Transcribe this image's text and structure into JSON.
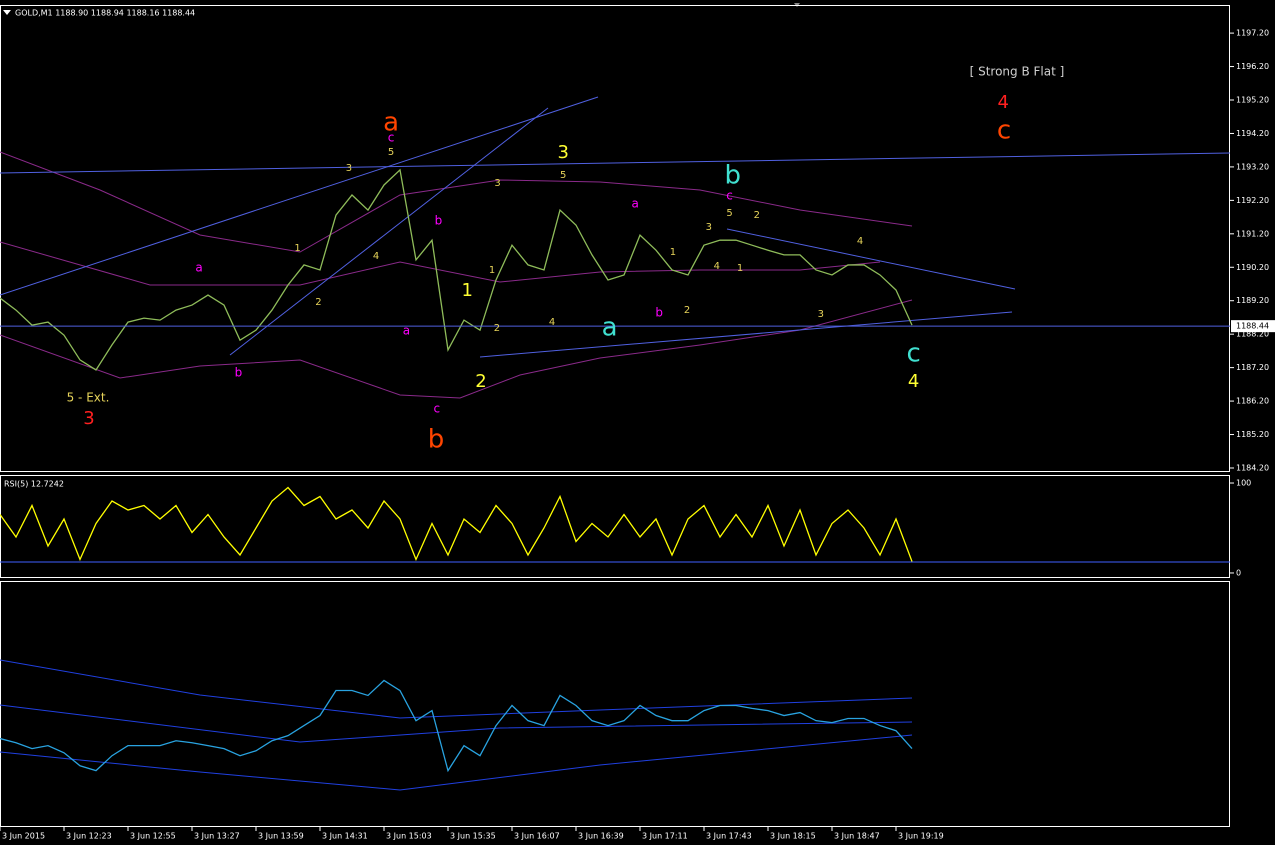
{
  "chart_data": [
    {
      "type": "line",
      "title": "GOLD,M1  1188.90 1188.94 1188.16 1188.44",
      "color": "#8fbc5a",
      "values": [
        1189.28,
        1188.92,
        1188.47,
        1188.56,
        1188.17,
        1187.43,
        1187.13,
        1187.88,
        1188.56,
        1188.68,
        1188.62,
        1188.92,
        1189.07,
        1189.37,
        1189.07,
        1188.02,
        1188.32,
        1188.92,
        1189.67,
        1190.27,
        1190.12,
        1191.76,
        1192.36,
        1191.91,
        1192.66,
        1193.11,
        1190.42,
        1191.01,
        1187.73,
        1188.62,
        1188.32,
        1189.82,
        1190.86,
        1190.27,
        1190.12,
        1191.91,
        1191.46,
        1190.57,
        1189.82,
        1189.97,
        1191.16,
        1190.71,
        1190.12,
        1189.97,
        1190.86,
        1191.01,
        1191.01,
        1190.86,
        1190.71,
        1190.57,
        1190.57,
        1190.12,
        1189.97,
        1190.27,
        1190.27,
        1189.97,
        1189.52,
        1188.47
      ],
      "last_price": 1188.44,
      "ylim": [
        1184.08,
        1198.04
      ],
      "yticks": [
        {
          "value": 1184.2,
          "label": "1184.20"
        },
        {
          "value": 1185.2,
          "label": "1185.20"
        },
        {
          "value": 1186.2,
          "label": "1186.20"
        },
        {
          "value": 1187.2,
          "label": "1187.20"
        },
        {
          "value": 1188.2,
          "label": "1188.20"
        },
        {
          "value": 1189.2,
          "label": "1189.20"
        },
        {
          "value": 1190.2,
          "label": "1190.20"
        },
        {
          "value": 1191.2,
          "label": "1191.20"
        },
        {
          "value": 1192.2,
          "label": "1192.20"
        },
        {
          "value": 1193.2,
          "label": "1193.20"
        },
        {
          "value": 1194.2,
          "label": "1194.20"
        },
        {
          "value": 1195.2,
          "label": "1195.20"
        },
        {
          "value": 1196.2,
          "label": "1196.20"
        },
        {
          "value": 1197.2,
          "label": "1197.20"
        }
      ],
      "annotations": [
        {
          "text": "a",
          "x": 24.44,
          "y": 1194.51,
          "color": "#ff4500",
          "size": "large"
        },
        {
          "text": "c",
          "x": 24.44,
          "y": 1194.06,
          "color": "#ff00ff",
          "size": "small"
        },
        {
          "text": "5",
          "x": 24.44,
          "y": 1193.64,
          "color": "#e6d35a",
          "size": "tiny"
        },
        {
          "text": "3",
          "x": 21.81,
          "y": 1193.17,
          "color": "#e6d35a",
          "size": "tiny"
        },
        {
          "text": "1",
          "x": 18.6,
          "y": 1190.77,
          "color": "#e6d35a",
          "size": "tiny"
        },
        {
          "text": "2",
          "x": 19.9,
          "y": 1189.16,
          "color": "#e6d35a",
          "size": "tiny"
        },
        {
          "text": "4",
          "x": 23.5,
          "y": 1190.54,
          "color": "#e6d35a",
          "size": "tiny"
        },
        {
          "text": "a",
          "x": 12.44,
          "y": 1190.18,
          "color": "#ff00ff",
          "size": "small"
        },
        {
          "text": "b",
          "x": 14.9,
          "y": 1187.04,
          "color": "#ff00ff",
          "size": "small"
        },
        {
          "text": "5 - Ext.",
          "x": 5.5,
          "y": 1186.29,
          "color": "#e6d35a",
          "size": "small"
        },
        {
          "text": "3",
          "x": 5.56,
          "y": 1185.66,
          "color": "#ff2020",
          "size": "medium"
        },
        {
          "text": "b",
          "x": 27.4,
          "y": 1191.58,
          "color": "#ff00ff",
          "size": "small"
        },
        {
          "text": "a",
          "x": 25.4,
          "y": 1188.29,
          "color": "#ff00ff",
          "size": "small"
        },
        {
          "text": "c",
          "x": 27.3,
          "y": 1185.96,
          "color": "#ff00ff",
          "size": "small"
        },
        {
          "text": "b",
          "x": 27.25,
          "y": 1185.04,
          "color": "#ff4500",
          "size": "large"
        },
        {
          "text": "1",
          "x": 29.2,
          "y": 1189.49,
          "color": "#ffff33",
          "size": "medium"
        },
        {
          "text": "2",
          "x": 30.06,
          "y": 1186.77,
          "color": "#ffff33",
          "size": "medium"
        },
        {
          "text": "1",
          "x": 30.75,
          "y": 1190.12,
          "color": "#e6d35a",
          "size": "tiny"
        },
        {
          "text": "2",
          "x": 31.06,
          "y": 1188.38,
          "color": "#e6d35a",
          "size": "tiny"
        },
        {
          "text": "3",
          "x": 31.1,
          "y": 1192.72,
          "color": "#e6d35a",
          "size": "tiny"
        },
        {
          "text": "3",
          "x": 35.2,
          "y": 1193.61,
          "color": "#ffff33",
          "size": "medium"
        },
        {
          "text": "5",
          "x": 35.2,
          "y": 1192.96,
          "color": "#e6d35a",
          "size": "tiny"
        },
        {
          "text": "4",
          "x": 34.5,
          "y": 1188.56,
          "color": "#e6d35a",
          "size": "tiny"
        },
        {
          "text": "a",
          "x": 39.7,
          "y": 1192.09,
          "color": "#ff00ff",
          "size": "small"
        },
        {
          "text": "a",
          "x": 38.1,
          "y": 1188.38,
          "color": "#40e0d0",
          "size": "large"
        },
        {
          "text": "b",
          "x": 41.2,
          "y": 1188.83,
          "color": "#ff00ff",
          "size": "small"
        },
        {
          "text": "1",
          "x": 42.06,
          "y": 1190.65,
          "color": "#e6d35a",
          "size": "tiny"
        },
        {
          "text": "2",
          "x": 42.94,
          "y": 1188.92,
          "color": "#e6d35a",
          "size": "tiny"
        },
        {
          "text": "b",
          "x": 45.8,
          "y": 1192.93,
          "color": "#40e0d0",
          "size": "large"
        },
        {
          "text": "c",
          "x": 45.6,
          "y": 1192.33,
          "color": "#ff00ff",
          "size": "small"
        },
        {
          "text": "5",
          "x": 45.6,
          "y": 1191.82,
          "color": "#e6d35a",
          "size": "tiny"
        },
        {
          "text": "3",
          "x": 44.3,
          "y": 1191.4,
          "color": "#e6d35a",
          "size": "tiny"
        },
        {
          "text": "2",
          "x": 47.3,
          "y": 1191.76,
          "color": "#e6d35a",
          "size": "tiny"
        },
        {
          "text": "4",
          "x": 44.8,
          "y": 1190.24,
          "color": "#e6d35a",
          "size": "tiny"
        },
        {
          "text": "1",
          "x": 46.25,
          "y": 1190.18,
          "color": "#e6d35a",
          "size": "tiny"
        },
        {
          "text": "4",
          "x": 53.75,
          "y": 1190.98,
          "color": "#e6d35a",
          "size": "tiny"
        },
        {
          "text": "3",
          "x": 51.3,
          "y": 1188.8,
          "color": "#e6d35a",
          "size": "tiny"
        },
        {
          "text": "c",
          "x": 57.1,
          "y": 1187.61,
          "color": "#40e0d0",
          "size": "large"
        },
        {
          "text": "4",
          "x": 57.1,
          "y": 1186.77,
          "color": "#ffff33",
          "size": "medium"
        },
        {
          "text": "[ Strong B Flat ]",
          "x": 63.56,
          "y": 1196.03,
          "color": "#d0d0d0",
          "size": "small"
        },
        {
          "text": "4",
          "x": 62.7,
          "y": 1195.11,
          "color": "#ff2020",
          "size": "medium"
        },
        {
          "text": "c",
          "x": 62.75,
          "y": 1194.27,
          "color": "#ff4500",
          "size": "large"
        }
      ]
    },
    {
      "type": "line",
      "title": "RSI(5) 12.7242",
      "color": "#ffff00",
      "values": [
        65,
        40,
        75,
        30,
        60,
        15,
        55,
        80,
        70,
        75,
        60,
        75,
        45,
        65,
        40,
        20,
        50,
        80,
        95,
        75,
        85,
        60,
        70,
        50,
        80,
        60,
        15,
        55,
        20,
        60,
        45,
        75,
        55,
        20,
        50,
        85,
        35,
        55,
        40,
        65,
        40,
        60,
        20,
        60,
        75,
        40,
        65,
        40,
        75,
        30,
        70,
        20,
        55,
        70,
        50,
        20,
        60,
        12.7242
      ],
      "ylim": [
        -5.6,
        107.8
      ],
      "yticks": [
        0,
        100
      ]
    },
    {
      "type": "line",
      "color": "#29a3e0",
      "values": [
        36.1,
        34.4,
        32.0,
        33.2,
        30.3,
        25.0,
        23.0,
        29.1,
        33.2,
        33.2,
        33.2,
        35.2,
        34.4,
        33.2,
        32.0,
        29.1,
        31.1,
        35.2,
        37.3,
        41.4,
        45.5,
        55.7,
        55.7,
        53.7,
        59.8,
        55.7,
        43.4,
        47.5,
        23.0,
        33.2,
        29.1,
        41.4,
        49.6,
        43.4,
        41.4,
        53.7,
        49.6,
        43.4,
        41.4,
        43.4,
        49.6,
        45.5,
        43.4,
        43.4,
        47.5,
        49.6,
        49.6,
        48.4,
        47.5,
        45.5,
        46.7,
        43.4,
        42.6,
        44.3,
        44.3,
        41.4,
        39.3,
        32.0
      ],
      "ylim": [
        0,
        100
      ],
      "categories": [
        "3 Jun 2015",
        null,
        null,
        null,
        "3 Jun 12:23",
        null,
        null,
        null,
        "3 Jun 12:55",
        null,
        null,
        null,
        "3 Jun 13:27",
        null,
        null,
        null,
        "3 Jun 13:59",
        null,
        null,
        null,
        "3 Jun 14:31",
        null,
        null,
        null,
        "3 Jun 15:03",
        null,
        null,
        null,
        "3 Jun 15:35",
        null,
        null,
        null,
        "3 Jun 16:07",
        null,
        null,
        null,
        "3 Jun 16:39",
        null,
        null,
        null,
        "3 Jun 17:11",
        null,
        null,
        null,
        "3 Jun 17:43",
        null,
        null,
        null,
        "3 Jun 18:15",
        null,
        null,
        null,
        "3 Jun 18:47",
        null,
        null,
        null,
        "3 Jun 19:19",
        null
      ]
    }
  ]
}
